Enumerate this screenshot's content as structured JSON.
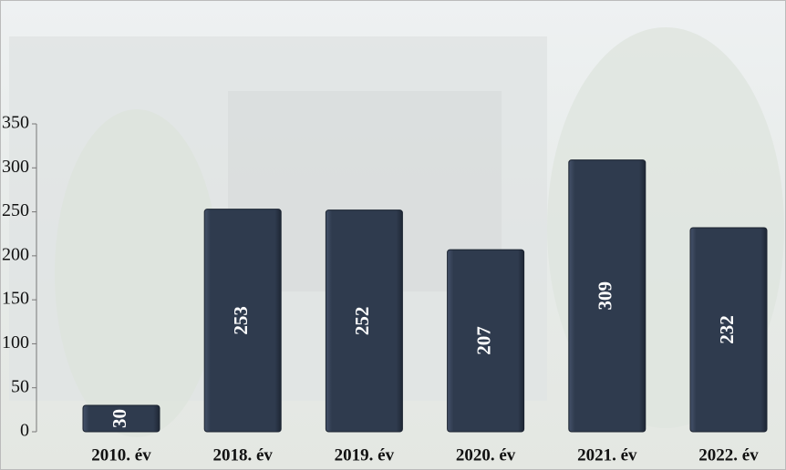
{
  "chart_data": {
    "type": "bar",
    "categories": [
      "2010. év",
      "2018. év",
      "2019. év",
      "2020. év",
      "2021. év",
      "2022. év"
    ],
    "values": [
      30,
      253,
      252,
      207,
      309,
      232
    ],
    "color": "#2f3b4e",
    "ylim": [
      0,
      350
    ],
    "yticks": [
      0,
      50,
      100,
      150,
      200,
      250,
      300,
      350
    ],
    "grid": false
  }
}
